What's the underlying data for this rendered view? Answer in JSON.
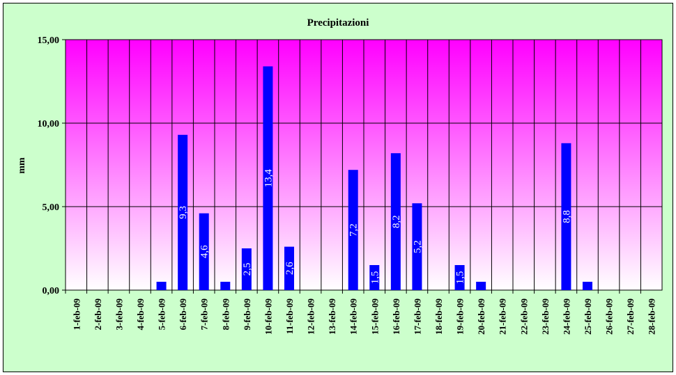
{
  "chart_data": {
    "type": "bar",
    "title": "Precipitazioni",
    "xlabel": "",
    "ylabel": "mm",
    "ylim": [
      0,
      15
    ],
    "yticks": [
      "0,00",
      "5,00",
      "10,00",
      "15,00"
    ],
    "grid": true,
    "legend": "none",
    "categories": [
      "1-feb-09",
      "2-feb-09",
      "3-feb-09",
      "4-feb-09",
      "5-feb-09",
      "6-feb-09",
      "7-feb-09",
      "8-feb-09",
      "9-feb-09",
      "10-feb-09",
      "11-feb-09",
      "12-feb-09",
      "13-feb-09",
      "14-feb-09",
      "15-feb-09",
      "16-feb-09",
      "17-feb-09",
      "18-feb-09",
      "19-feb-09",
      "20-feb-09",
      "21-feb-09",
      "22-feb-09",
      "23-feb-09",
      "24-feb-09",
      "25-feb-09",
      "26-feb-09",
      "27-feb-09",
      "28-feb-09"
    ],
    "values": [
      0,
      0,
      0,
      0,
      0.5,
      9.3,
      4.6,
      0.5,
      2.5,
      13.4,
      2.6,
      0,
      0,
      7.2,
      1.5,
      8.2,
      5.2,
      0,
      1.5,
      0.5,
      0,
      0,
      0,
      8.8,
      0.5,
      0,
      0,
      0
    ],
    "data_labels": [
      "",
      "",
      "",
      "",
      "",
      "9,3",
      "4,6",
      "",
      "2,5",
      "13,4",
      "2,6",
      "",
      "",
      "7,2",
      "1,5",
      "8,2",
      "5,2",
      "",
      "1,5",
      "",
      "",
      "",
      "",
      "8,8",
      "",
      "",
      "",
      ""
    ],
    "colors": {
      "bar": "#0000ff",
      "bar_label": "#ffffff",
      "plot_top": "#ff00ff",
      "plot_bottom": "#ffffff",
      "chart_background": "#ccffcc",
      "grid": "#000000"
    }
  }
}
